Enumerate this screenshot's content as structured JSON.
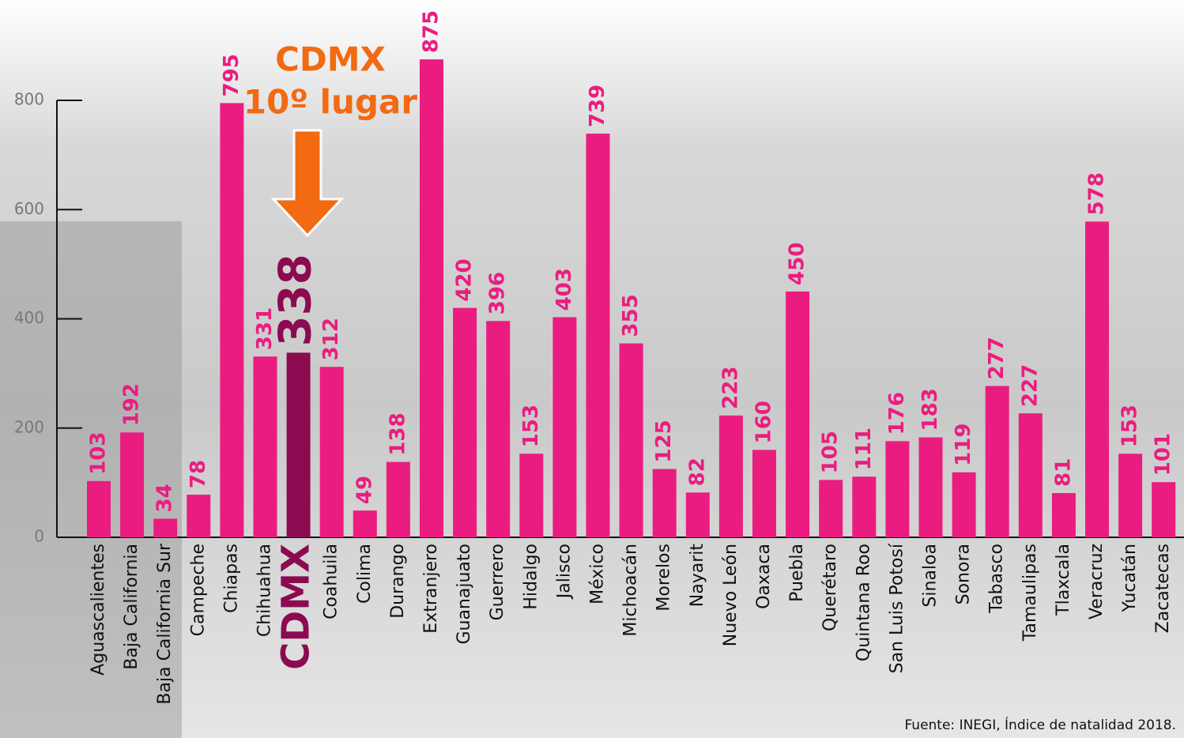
{
  "chart_data": {
    "type": "bar",
    "categories": [
      "Aguascalientes",
      "Baja California",
      "Baja California Sur",
      "Campeche",
      "Chiapas",
      "Chihuahua",
      "CDMX",
      "Coahuila",
      "Colima",
      "Durango",
      "Extranjero",
      "Guanajuato",
      "Guerrero",
      "Hidalgo",
      "Jalisco",
      "México",
      "Michoacán",
      "Morelos",
      "Nayarit",
      "Nuevo León",
      "Oaxaca",
      "Puebla",
      "Querétaro",
      "Quintana Roo",
      "San Luis Potosí",
      "Sinaloa",
      "Sonora",
      "Tabasco",
      "Tamaulipas",
      "Tlaxcala",
      "Veracruz",
      "Yucatán",
      "Zacatecas"
    ],
    "values": [
      103,
      192,
      34,
      78,
      795,
      331,
      338,
      312,
      49,
      138,
      875,
      420,
      396,
      153,
      403,
      739,
      355,
      125,
      82,
      223,
      160,
      450,
      105,
      111,
      176,
      183,
      119,
      277,
      227,
      81,
      578,
      153,
      101
    ],
    "color": "#eb1c7f",
    "highlight_index": 6,
    "highlight_color": "#8c0b50",
    "ylim": [
      0,
      800
    ],
    "yticks": [
      0,
      200,
      400,
      600,
      800
    ],
    "annotations": [
      "CDMX",
      "10º lugar"
    ],
    "annotation_color": "#f26a12",
    "source": "Fuente: INEGI, Índice de natalidad 2018."
  }
}
